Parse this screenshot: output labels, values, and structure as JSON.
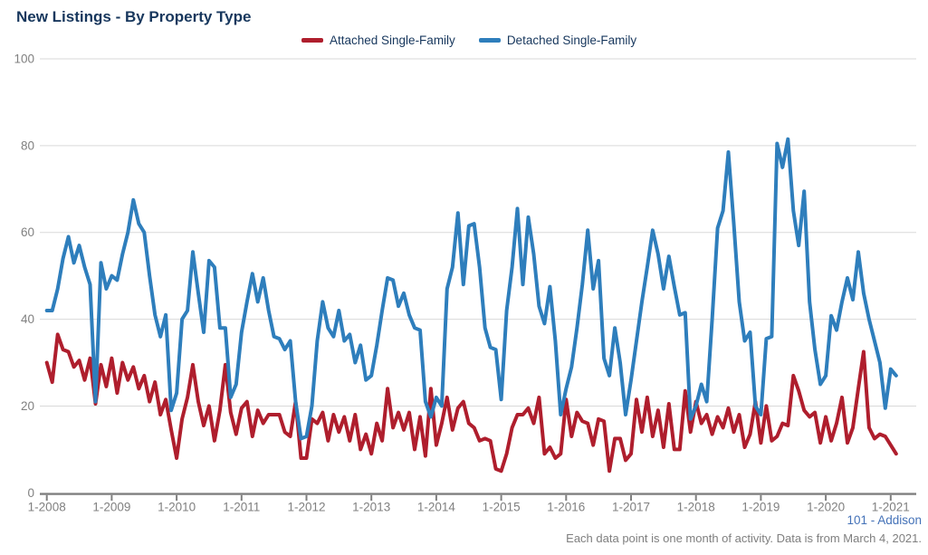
{
  "title": "New Listings - By Property Type",
  "legend": {
    "items": [
      {
        "label": "Attached Single-Family",
        "color": "#AF1E2D"
      },
      {
        "label": "Detached Single-Family",
        "color": "#2E7EBC"
      }
    ]
  },
  "footer": {
    "source": "101 - Addison",
    "note": "Each data point is one month of activity. Data is from March 4, 2021."
  },
  "chart_data": {
    "type": "line",
    "title": "New Listings - By Property Type",
    "x_unit": "month",
    "start_month": "2008-01",
    "end_month": "2021-02",
    "x_tick_labels": [
      "1-2008",
      "1-2009",
      "1-2010",
      "1-2011",
      "1-2012",
      "1-2013",
      "1-2014",
      "1-2015",
      "1-2016",
      "1-2017",
      "1-2018",
      "1-2019",
      "1-2020",
      "1-2021"
    ],
    "y_ticks": [
      0,
      20,
      40,
      60,
      80,
      100
    ],
    "ylim": [
      0,
      100
    ],
    "grid": "horizontal",
    "legend_position": "top",
    "axis_color": "#7F7F7F",
    "grid_color": "#D9D9D9",
    "tick_label_color": "#808080",
    "series": [
      {
        "name": "Attached Single-Family",
        "color": "#AF1E2D",
        "values": [
          30,
          25.5,
          36.5,
          33,
          32.5,
          29,
          30.5,
          26,
          31,
          20.5,
          29.5,
          24.5,
          31,
          23,
          30,
          26,
          29,
          24,
          27,
          21,
          25.5,
          18,
          21.5,
          14.5,
          8,
          17,
          22,
          29.5,
          21,
          15.5,
          20,
          12,
          19,
          29.5,
          18.5,
          13.5,
          19.5,
          21,
          13,
          19,
          16,
          18,
          18,
          18,
          14,
          13,
          21,
          8,
          8,
          17,
          16,
          18.5,
          12,
          18,
          14,
          17.5,
          12,
          18,
          10,
          13.5,
          9,
          16,
          12,
          24,
          15,
          18.5,
          14.5,
          18.5,
          10,
          17.5,
          8.5,
          24,
          11,
          16,
          22,
          14.5,
          19.5,
          21,
          16,
          15,
          12,
          12.5,
          12,
          5.5,
          5,
          9,
          15,
          18,
          18,
          19.5,
          16,
          22,
          9,
          10.5,
          8,
          9,
          21.5,
          13,
          18.5,
          16.5,
          16,
          11,
          17,
          16.5,
          5,
          12.5,
          12.5,
          7.5,
          9,
          21.5,
          14,
          22,
          13,
          19,
          10.5,
          20.5,
          10,
          10,
          23.5,
          14,
          21,
          16,
          18,
          13.5,
          17.5,
          15,
          19.5,
          14,
          18,
          10.5,
          13.5,
          21,
          11.5,
          20,
          12,
          13,
          16,
          15.5,
          27,
          23.5,
          19,
          17.5,
          18.5,
          11.5,
          17.5,
          12,
          16,
          22,
          11.5,
          15,
          24,
          32.5,
          15,
          12.5,
          13.5,
          13,
          11,
          9
        ]
      },
      {
        "name": "Detached Single-Family",
        "color": "#2E7EBC",
        "values": [
          42,
          42,
          47,
          54,
          59,
          53,
          57,
          52,
          48,
          21,
          53,
          47,
          50,
          49,
          55,
          60,
          67.5,
          62,
          60,
          50,
          41,
          36,
          41,
          19,
          23,
          40,
          42,
          55.5,
          46,
          37,
          53.5,
          52,
          38,
          38,
          22,
          25,
          37,
          44,
          50.5,
          44,
          49.5,
          42,
          36,
          35.5,
          33,
          35,
          21,
          12.5,
          13,
          20,
          35,
          44,
          38,
          36,
          42,
          35,
          36.5,
          30,
          34,
          26,
          27,
          34,
          42,
          49.5,
          49,
          43,
          46,
          41,
          38,
          37.5,
          21,
          17.5,
          22,
          20,
          47,
          52,
          64.5,
          48,
          61.5,
          62,
          52,
          38,
          33.5,
          33,
          21.5,
          42,
          52,
          65.5,
          48,
          63.5,
          55,
          43,
          39,
          47.5,
          35,
          18,
          24,
          29,
          38,
          48,
          60.5,
          47,
          53.5,
          31,
          27,
          38,
          30,
          18,
          26,
          35,
          44,
          52,
          60.5,
          55,
          47,
          54.5,
          47.5,
          41,
          41.5,
          17,
          20,
          25,
          21,
          40,
          61,
          65,
          78.5,
          62,
          44,
          35,
          37,
          20,
          18,
          35.5,
          36,
          80.5,
          75,
          81.5,
          65,
          57,
          69.5,
          44,
          33,
          25,
          27,
          40.8,
          37.5,
          44,
          49.5,
          44.5,
          55.5,
          46,
          40,
          35,
          30,
          19.5,
          28.5,
          27
        ]
      }
    ]
  }
}
